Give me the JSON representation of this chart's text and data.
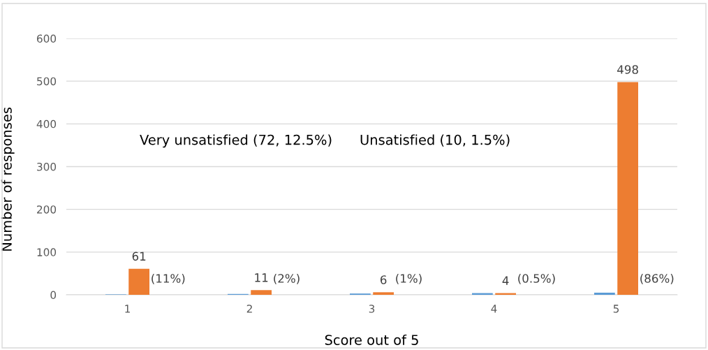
{
  "chart_data": {
    "type": "bar",
    "xlabel": "Score out of 5",
    "ylabel": "Number of responses",
    "categories": [
      "1",
      "2",
      "3",
      "4",
      "5"
    ],
    "series": [
      {
        "color": "#5b9bd5",
        "values": [
          1,
          2,
          3,
          4,
          5
        ]
      },
      {
        "color": "#ed7d31",
        "values": [
          61,
          11,
          6,
          4,
          498
        ],
        "value_labels": [
          "61",
          "11",
          "6",
          "4",
          "498"
        ]
      }
    ],
    "ylim": [
      0,
      600
    ],
    "yticks": [
      0,
      100,
      200,
      300,
      400,
      500,
      600
    ],
    "grid": "y",
    "legend": false,
    "annotations": [
      "(11%)",
      "(2%)",
      "(1%)",
      "(0.5%)",
      "(86%)",
      "Very unsatisfied (72, 12.5%)",
      "Unsatisfied (10, 1.5%)"
    ]
  }
}
